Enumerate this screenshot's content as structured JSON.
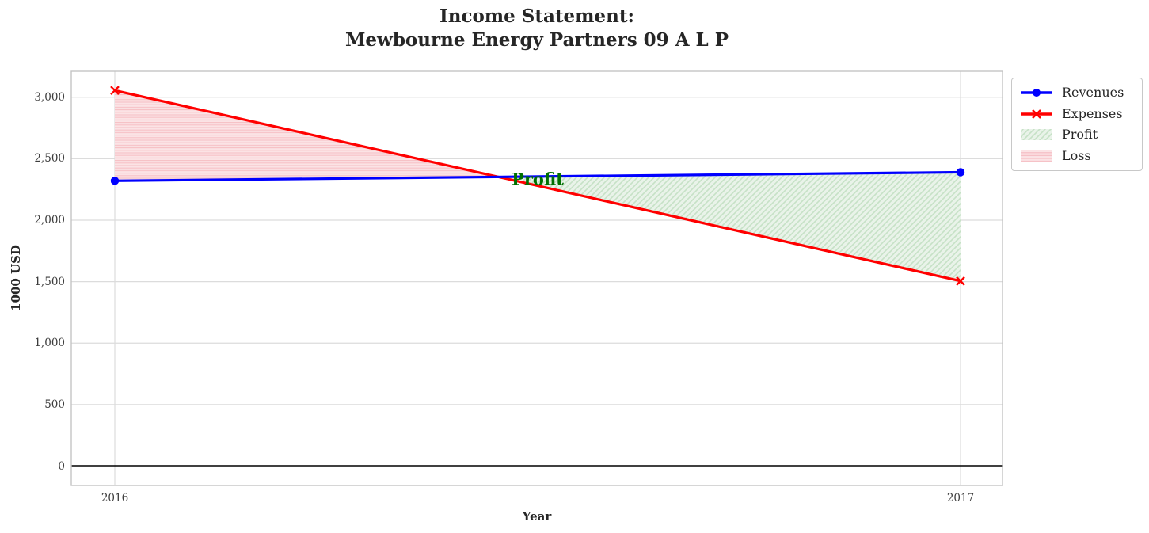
{
  "chart": {
    "title_line1": "Income Statement:",
    "title_line2": "Mewbourne Energy Partners 09 A L P",
    "xlabel": "Year",
    "ylabel": "1000 USD",
    "annotation": {
      "text": "Profit",
      "color": "#007000"
    }
  },
  "chart_data": {
    "type": "line",
    "title": "Income Statement: Mewbourne Energy Partners 09 A L P",
    "xlabel": "Year",
    "ylabel": "1000 USD",
    "x": [
      2016,
      2017
    ],
    "x_tick_labels": [
      "2016",
      "2017"
    ],
    "series": [
      {
        "name": "Revenues",
        "color": "#0000ff",
        "marker": "circle",
        "line_width": 3,
        "values": [
          2320,
          2390
        ]
      },
      {
        "name": "Expenses",
        "color": "#ff0000",
        "marker": "x",
        "line_width": 3,
        "values": [
          3055,
          1505
        ]
      }
    ],
    "areas": [
      {
        "name": "Loss",
        "region": "expenses_above_revenues",
        "fill": "#fbe3e5",
        "hatch": "horizontal",
        "hatch_color": "#f6c0c5"
      },
      {
        "name": "Profit",
        "region": "revenues_above_expenses",
        "fill": "#e9f3e9",
        "hatch": "diagonal",
        "hatch_color": "#c6e1c6"
      }
    ],
    "yticks": {
      "values": [
        0,
        500,
        1000,
        1500,
        2000,
        2500,
        3000
      ],
      "labels": [
        "0",
        "500",
        "1,000",
        "1,500",
        "2,000",
        "2,500",
        "3,000"
      ]
    },
    "ylim": [
      -160,
      3220
    ],
    "xlim": [
      2015.95,
      2017.05
    ],
    "grid": true,
    "zero_line": true,
    "legend_position": "outside-top-right",
    "annotation": {
      "text": "Profit",
      "x": 2016.5,
      "y": 2330
    }
  },
  "legend": {
    "items": [
      {
        "label": "Revenues",
        "type": "line",
        "color": "#0000ff",
        "marker": "circle"
      },
      {
        "label": "Expenses",
        "type": "line",
        "color": "#ff0000",
        "marker": "x"
      },
      {
        "label": "Profit",
        "type": "patch",
        "fill": "#e9f3e9",
        "hatch": "diagonal",
        "hatch_color": "#c6e1c6"
      },
      {
        "label": "Loss",
        "type": "patch",
        "fill": "#fbe3e5",
        "hatch": "horizontal",
        "hatch_color": "#f6c0c5"
      }
    ]
  },
  "colors": {
    "grid": "#dcdcdc",
    "spine": "#c4c4c4",
    "zero_line": "#000000",
    "title_text": "#262626",
    "tick_text": "#3c3c3c"
  }
}
